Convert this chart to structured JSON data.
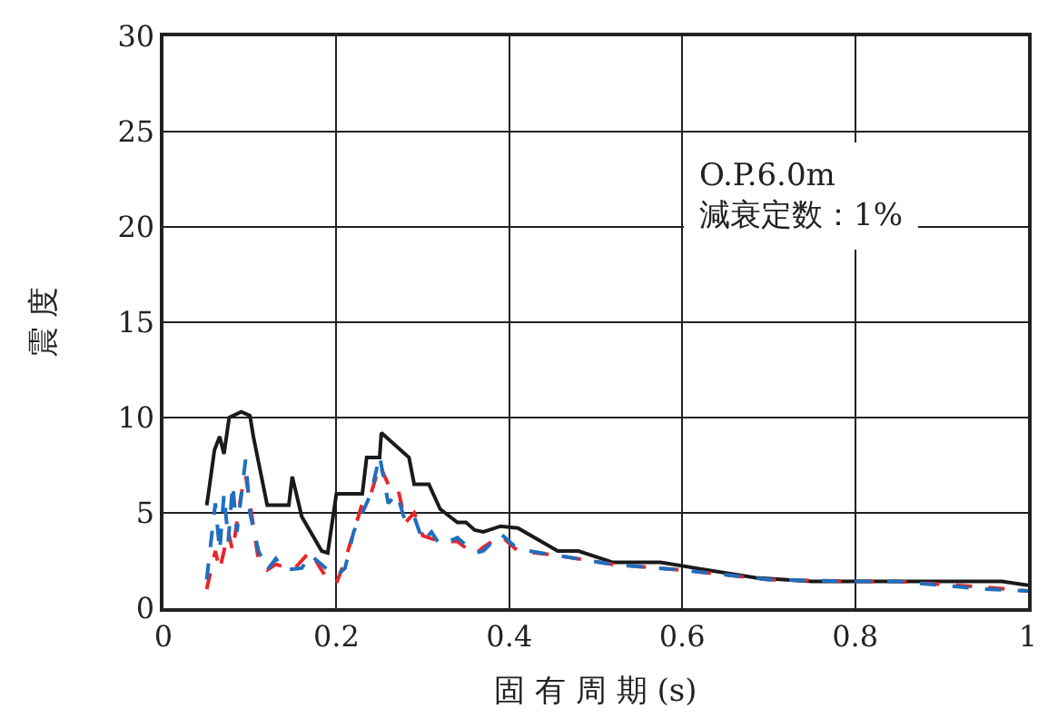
{
  "chart_data": {
    "type": "line",
    "xlabel": "固 有 周 期 (s)",
    "ylabel": "震 度",
    "xlim": [
      0,
      1
    ],
    "xticks": [
      0,
      {
        "value": 0.2,
        "label": "0.2"
      },
      {
        "value": 0.4,
        "label": "0.4"
      },
      {
        "value": 0.6,
        "label": "0.6"
      },
      {
        "value": 0.8,
        "label": "0.8"
      },
      1
    ],
    "ylim": [
      0,
      30
    ],
    "yticks": [
      0,
      5,
      10,
      15,
      20,
      25,
      30
    ],
    "grid": true,
    "marker": "none",
    "annotations": [
      "O.P.6.0m",
      "減衰定数：1%"
    ],
    "series": [
      {
        "color": "#1a1a1a",
        "line_style": "solid",
        "x": [
          0.05,
          0.052,
          0.059,
          0.065,
          0.07,
          0.076,
          0.09,
          0.1,
          0.104,
          0.12,
          0.145,
          0.149,
          0.16,
          0.183,
          0.19,
          0.2,
          0.23,
          0.235,
          0.25,
          0.252,
          0.284,
          0.29,
          0.307,
          0.32,
          0.34,
          0.35,
          0.36,
          0.37,
          0.39,
          0.41,
          0.456,
          0.48,
          0.52,
          0.575,
          0.685,
          0.75,
          0.97,
          1.0
        ],
        "values": [
          5.4,
          6.0,
          8.3,
          9.0,
          8.1,
          10.0,
          10.3,
          10.1,
          9.0,
          5.4,
          5.4,
          6.9,
          4.8,
          3.0,
          2.9,
          6.0,
          6.0,
          7.9,
          7.9,
          9.2,
          7.9,
          6.5,
          6.5,
          5.2,
          4.5,
          4.5,
          4.1,
          4.0,
          4.3,
          4.2,
          3.0,
          3.0,
          2.4,
          2.4,
          1.6,
          1.4,
          1.4,
          1.2
        ]
      },
      {
        "color": "#e8262b",
        "line_style": "dashed",
        "x": [
          0.05,
          0.06,
          0.065,
          0.075,
          0.08,
          0.09,
          0.095,
          0.1,
          0.11,
          0.12,
          0.13,
          0.15,
          0.16,
          0.17,
          0.18,
          0.19,
          0.2,
          0.21,
          0.22,
          0.23,
          0.24,
          0.25,
          0.26,
          0.27,
          0.28,
          0.29,
          0.3,
          0.32,
          0.34,
          0.36,
          0.37,
          0.39,
          0.41,
          0.45,
          0.52,
          0.6,
          0.7,
          0.8,
          0.85,
          0.95,
          1.0
        ],
        "values": [
          1.0,
          3.0,
          2.0,
          4.0,
          3.0,
          6.0,
          7.0,
          5.5,
          2.5,
          2.0,
          2.3,
          2.0,
          2.5,
          3.0,
          2.2,
          1.5,
          1.3,
          2.5,
          4.0,
          5.5,
          6.0,
          7.5,
          6.5,
          6.5,
          4.5,
          5.0,
          3.8,
          3.5,
          3.5,
          2.8,
          3.2,
          3.8,
          3.0,
          2.8,
          2.3,
          2.0,
          1.5,
          1.4,
          1.4,
          1.1,
          0.9
        ]
      },
      {
        "color": "#1f6fbf",
        "line_style": "dashed",
        "x": [
          0.05,
          0.06,
          0.065,
          0.07,
          0.075,
          0.08,
          0.085,
          0.095,
          0.1,
          0.11,
          0.12,
          0.13,
          0.14,
          0.16,
          0.17,
          0.19,
          0.2,
          0.21,
          0.22,
          0.23,
          0.24,
          0.25,
          0.26,
          0.27,
          0.28,
          0.29,
          0.3,
          0.31,
          0.32,
          0.34,
          0.36,
          0.37,
          0.39,
          0.41,
          0.45,
          0.52,
          0.6,
          0.7,
          0.8,
          0.85,
          0.95,
          1.0
        ],
        "values": [
          1.5,
          5.5,
          3.0,
          6.0,
          3.5,
          6.5,
          4.0,
          7.8,
          5.0,
          3.0,
          2.0,
          2.6,
          2.0,
          2.1,
          2.8,
          2.0,
          1.7,
          2.1,
          4.0,
          5.0,
          6.0,
          8.0,
          5.5,
          6.0,
          4.5,
          4.8,
          3.5,
          4.0,
          3.3,
          3.7,
          2.9,
          3.0,
          3.9,
          3.1,
          2.8,
          2.3,
          2.0,
          1.5,
          1.4,
          1.4,
          1.0,
          0.9
        ]
      }
    ]
  }
}
